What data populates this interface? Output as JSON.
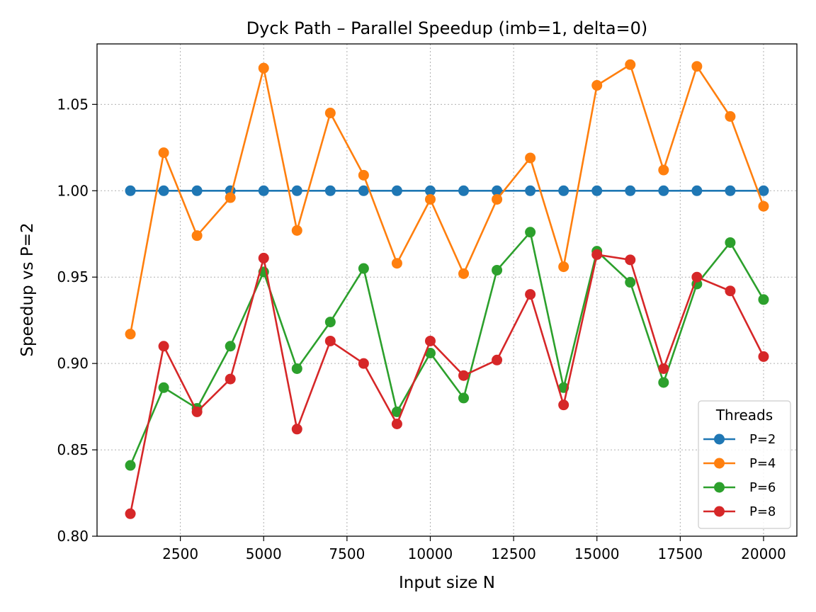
{
  "chart_data": {
    "type": "line",
    "title": "Dyck Path – Parallel Speedup (imb=1, delta=0)",
    "xlabel": "Input size N",
    "ylabel": "Speedup vs P=2",
    "xlim": [
      0,
      21000
    ],
    "ylim": [
      0.8,
      1.085
    ],
    "grid": true,
    "legend_title": "Threads",
    "legend_position": "lower-right",
    "x_ticks": [
      2500,
      5000,
      7500,
      10000,
      12500,
      15000,
      17500,
      20000
    ],
    "x_tick_labels": [
      "2500",
      "5000",
      "7500",
      "10000",
      "12500",
      "15000",
      "17500",
      "20000"
    ],
    "y_ticks": [
      0.8,
      0.85,
      0.9,
      0.95,
      1.0,
      1.05
    ],
    "y_tick_labels": [
      "0.80",
      "0.85",
      "0.90",
      "0.95",
      "1.00",
      "1.05"
    ],
    "x": [
      1000,
      2000,
      3000,
      4000,
      5000,
      6000,
      7000,
      8000,
      9000,
      10000,
      11000,
      12000,
      13000,
      14000,
      15000,
      16000,
      17000,
      18000,
      19000,
      20000
    ],
    "series": [
      {
        "name": "P=2",
        "color": "#1f77b4",
        "values": [
          1.0,
          1.0,
          1.0,
          1.0,
          1.0,
          1.0,
          1.0,
          1.0,
          1.0,
          1.0,
          1.0,
          1.0,
          1.0,
          1.0,
          1.0,
          1.0,
          1.0,
          1.0,
          1.0,
          1.0
        ]
      },
      {
        "name": "P=4",
        "color": "#ff7f0e",
        "values": [
          0.917,
          1.022,
          0.974,
          0.996,
          1.071,
          0.977,
          1.045,
          1.009,
          0.958,
          0.995,
          0.952,
          0.995,
          1.019,
          0.956,
          1.061,
          1.073,
          1.012,
          1.072,
          1.043,
          0.991
        ]
      },
      {
        "name": "P=6",
        "color": "#2ca02c",
        "values": [
          0.841,
          0.886,
          0.874,
          0.91,
          0.953,
          0.897,
          0.924,
          0.955,
          0.872,
          0.906,
          0.88,
          0.954,
          0.976,
          0.886,
          0.965,
          0.947,
          0.889,
          0.946,
          0.97,
          0.937
        ]
      },
      {
        "name": "P=8",
        "color": "#d62728",
        "values": [
          0.813,
          0.91,
          0.872,
          0.891,
          0.961,
          0.862,
          0.913,
          0.9,
          0.865,
          0.913,
          0.893,
          0.902,
          0.94,
          0.876,
          0.963,
          0.96,
          0.897,
          0.95,
          0.942,
          0.904
        ]
      }
    ]
  }
}
